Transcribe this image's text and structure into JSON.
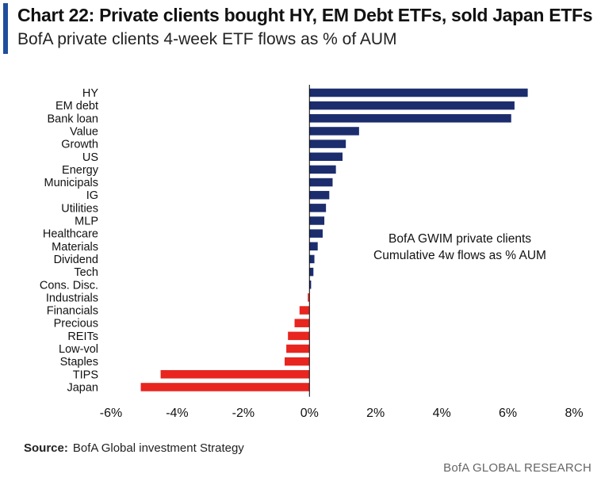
{
  "header": {
    "title": "Chart 22: Private clients bought HY, EM Debt ETFs, sold Japan ETFs",
    "subtitle": "BofA private clients 4-week ETF flows as % of AUM"
  },
  "footer": {
    "source_label": "Source:",
    "source_text": "BofA Global investment Strategy",
    "brand": "BofA GLOBAL RESEARCH"
  },
  "colors": {
    "positive": "#1c2d6e",
    "negative": "#e8251f",
    "axis": "#000000"
  },
  "chart_data": {
    "type": "bar",
    "orientation": "horizontal",
    "title": "",
    "xlabel": "",
    "ylabel": "",
    "categories": [
      "HY",
      "EM debt",
      "Bank loan",
      "Value",
      "Growth",
      "US",
      "Energy",
      "Municipals",
      "IG",
      "Utilities",
      "MLP",
      "Healthcare",
      "Materials",
      "Dividend",
      "Tech",
      "Cons. Disc.",
      "Industrials",
      "Financials",
      "Precious",
      "REITs",
      "Low-vol",
      "Staples",
      "TIPS",
      "Japan"
    ],
    "values": [
      6.6,
      6.2,
      6.1,
      1.5,
      1.1,
      1.0,
      0.8,
      0.7,
      0.6,
      0.5,
      0.45,
      0.4,
      0.25,
      0.15,
      0.12,
      0.05,
      -0.05,
      -0.3,
      -0.45,
      -0.65,
      -0.7,
      -0.75,
      -4.5,
      -5.1
    ],
    "xlim": [
      -6,
      8
    ],
    "xticks": [
      -6,
      -4,
      -2,
      0,
      2,
      4,
      6,
      8
    ],
    "xtick_labels": [
      "-6%",
      "-4%",
      "-2%",
      "0%",
      "2%",
      "4%",
      "6%",
      "8%"
    ],
    "annotation": [
      "BofA GWIM private clients",
      "Cumulative 4w flows as % AUM"
    ],
    "grid": false,
    "legend": "none"
  }
}
